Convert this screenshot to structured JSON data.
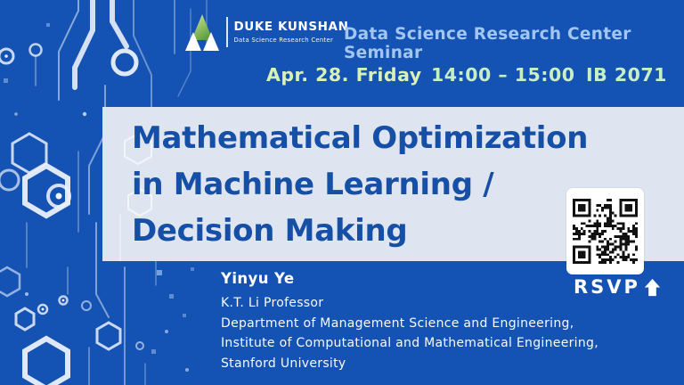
{
  "brand": {
    "name": "DUKE KUNSHAN",
    "subtitle": "Data Science Research Center"
  },
  "header": {
    "seminar_series": "Data Science Research Center Seminar"
  },
  "schedule": {
    "date": "Apr. 28. Friday",
    "time": "14:00 – 15:00",
    "room": "IB 2071"
  },
  "title": {
    "lines": [
      "Mathematical Optimization",
      "in Machine Learning /",
      "Decision Making"
    ]
  },
  "speaker": {
    "name": "Yinyu Ye",
    "role": "K.T. Li Professor",
    "affiliations": [
      "Department of Management Science and Engineering,",
      "Institute of Computational and Mathematical Engineering,",
      "Stanford University"
    ]
  },
  "rsvp": {
    "label": "RSVP"
  },
  "icons": {
    "rsvp": "arrow-up-icon",
    "logo": "triangle-mountain-logo",
    "qr": "qr-code"
  },
  "colors": {
    "background": "#1453b4",
    "band": "#dfe5f0",
    "title_text": "#164fa6",
    "header_text": "#a3c6ee",
    "date_text": "#d9f1b6",
    "time_text": "#c8eec6",
    "logo_green_top": "#d7e8a2",
    "logo_green_bottom": "#5f9e3c"
  }
}
